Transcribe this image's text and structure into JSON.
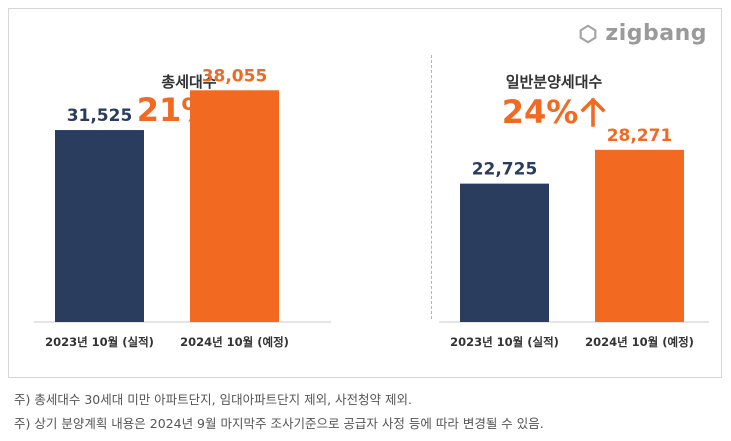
{
  "logo": {
    "text": "zigbang",
    "icon": "zigbang-logo-icon"
  },
  "colors": {
    "prev": "#2b3d5e",
    "next": "#f26a21",
    "axis": "#c8c8c8",
    "label_prev": "#2b3d5e",
    "label_next": "#f26a21"
  },
  "panels": [
    {
      "title": "총세대수",
      "growth": "21%"
    },
    {
      "title": "일반분양세대수",
      "growth": "24%"
    }
  ],
  "chart_data": [
    {
      "type": "bar",
      "title": "총세대수",
      "categories": [
        "2023년 10월 (실적)",
        "2024년 10월 (예정)"
      ],
      "values": [
        31525,
        38055
      ],
      "value_labels": [
        "31,525",
        "38,055"
      ],
      "annotation": "21%",
      "ylim": [
        0,
        45000
      ]
    },
    {
      "type": "bar",
      "title": "일반분양세대수",
      "categories": [
        "2023년 10월 (실적)",
        "2024년 10월 (예정)"
      ],
      "values": [
        22725,
        28271
      ],
      "value_labels": [
        "22,725",
        "28,271"
      ],
      "annotation": "24%",
      "ylim": [
        0,
        45000
      ]
    }
  ],
  "footnotes": [
    "주) 총세대수 30세대 미만 아파트단지, 임대아파트단지 제외, 사전청약 제외.",
    "주) 상기 분양계획 내용은 2024년 9월 마지막주 조사기준으로 공급자 사정 등에 따라 변경될 수 있음."
  ]
}
